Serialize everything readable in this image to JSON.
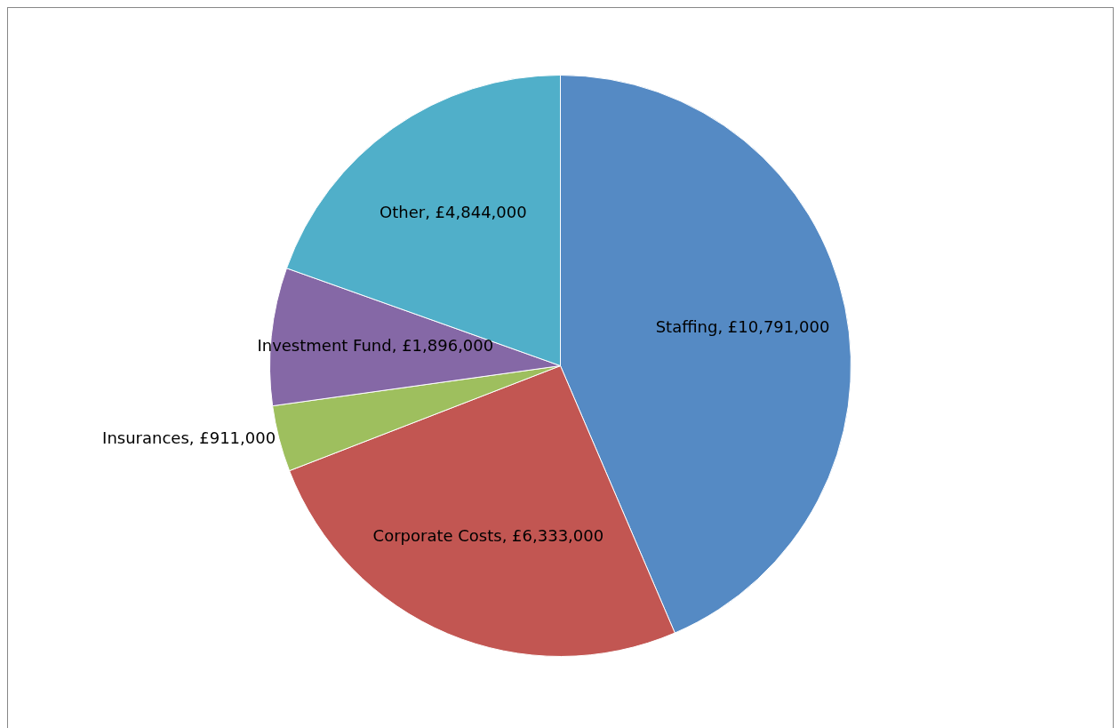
{
  "chart_data": {
    "type": "pie",
    "categories": [
      "Staffing",
      "Corporate Costs",
      "Insurances",
      "Investment Fund",
      "Other"
    ],
    "values": [
      10791000,
      6333000,
      911000,
      1896000,
      4844000
    ],
    "value_labels": [
      "£10,791,000",
      "£6,333,000",
      "£911,000",
      "£1,896,000",
      "£4,844,000"
    ],
    "colors": [
      "#558ac4",
      "#c25652",
      "#9ebf5e",
      "#8568a6",
      "#50afc9"
    ],
    "legend": false
  }
}
